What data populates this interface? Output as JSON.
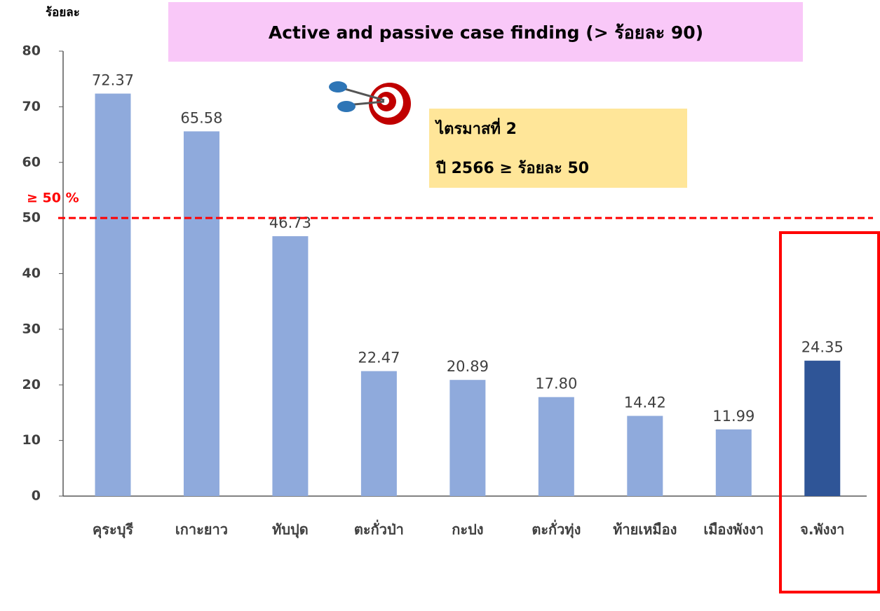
{
  "chart_data": {
    "type": "bar",
    "title": "Active and passive case finding (> ร้อยละ 90)",
    "y_label": "ร้อยละ",
    "categories": [
      "คุระบุรี",
      "เกาะยาว",
      "ทับปุด",
      "ตะกั่วป่า",
      "กะปง",
      "ตะกั่วทุ่ง",
      "ท้ายเหมือง",
      "เมืองพังงา",
      "จ.พังงา"
    ],
    "values": [
      72.37,
      65.58,
      46.73,
      22.47,
      20.89,
      17.8,
      14.42,
      11.99,
      24.35
    ],
    "value_labels": [
      "72.37",
      "65.58",
      "46.73",
      "22.47",
      "20.89",
      "17.80",
      "14.42",
      "11.99",
      "24.35"
    ],
    "colors": [
      "#8faadc",
      "#8faadc",
      "#8faadc",
      "#8faadc",
      "#8faadc",
      "#8faadc",
      "#8faadc",
      "#8faadc",
      "#2f5597"
    ],
    "ylim": [
      0,
      80
    ],
    "yticks": [
      0,
      10,
      20,
      30,
      40,
      50,
      60,
      70,
      80
    ],
    "threshold": {
      "value": 50,
      "label": "≥ 50 %",
      "color": "#ff0000"
    },
    "annotation": {
      "lines": [
        "ไตรมาสที่ 2",
        "ปี 2566 ≥  ร้อยละ 50"
      ]
    }
  }
}
